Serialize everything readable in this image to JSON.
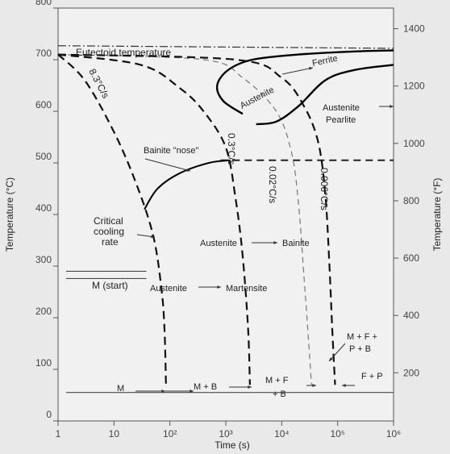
{
  "chart_data": {
    "type": "line",
    "xlabel": "Time (s)",
    "ylabel": "Temperature (°C)",
    "ylabel_right": "Temperature (°F)",
    "x_scale": "log",
    "xlim": [
      1,
      1000000
    ],
    "ylim": [
      0,
      800
    ],
    "y2lim": [
      32,
      1472
    ],
    "x_ticks": [
      {
        "value": 1,
        "label": "1"
      },
      {
        "value": 10,
        "label": "10"
      },
      {
        "value": 100,
        "label": "10²"
      },
      {
        "value": 1000,
        "label": "10³"
      },
      {
        "value": 10000,
        "label": "10⁴"
      },
      {
        "value": 100000,
        "label": "10⁵"
      },
      {
        "value": 1000000,
        "label": "10⁶"
      }
    ],
    "y_ticks": [
      0,
      100,
      200,
      300,
      400,
      500,
      600,
      700,
      800
    ],
    "y2_ticks": [
      200,
      400,
      600,
      800,
      1000,
      1200,
      1400
    ],
    "eutectoid": {
      "label": "Eutectoid temperature",
      "value": 727
    },
    "ms": {
      "label": "M (start)",
      "value": 290
    },
    "bainite_finish_temp": 505,
    "cooling_curves": [
      {
        "label": "8.3°C/s",
        "points": [
          [
            1,
            710
          ],
          [
            3,
            660
          ],
          [
            10,
            560
          ],
          [
            25,
            460
          ],
          [
            50,
            360
          ],
          [
            70,
            260
          ],
          [
            80,
            180
          ],
          [
            85,
            70
          ]
        ]
      },
      {
        "label": "0.3°C/s",
        "points": [
          [
            1,
            710
          ],
          [
            30,
            690
          ],
          [
            150,
            645
          ],
          [
            400,
            600
          ],
          [
            1000,
            530
          ],
          [
            1500,
            430
          ],
          [
            2000,
            320
          ],
          [
            2500,
            180
          ],
          [
            2700,
            70
          ]
        ]
      },
      {
        "label": "0.02°C/s",
        "points": [
          [
            1,
            710
          ],
          [
            400,
            700
          ],
          [
            2000,
            665
          ],
          [
            8000,
            600
          ],
          [
            15000,
            520
          ],
          [
            20000,
            420
          ],
          [
            25000,
            280
          ],
          [
            30000,
            160
          ],
          [
            34000,
            70
          ]
        ]
      },
      {
        "label": "0.006°C/s",
        "points": [
          [
            1,
            710
          ],
          [
            1500,
            700
          ],
          [
            10000,
            665
          ],
          [
            25000,
            610
          ],
          [
            45000,
            540
          ],
          [
            60000,
            440
          ],
          [
            70000,
            320
          ],
          [
            80000,
            180
          ],
          [
            90000,
            70
          ]
        ]
      }
    ],
    "transformation_curves": {
      "austenite_start": [
        [
          2000,
          595
        ],
        [
          900,
          620
        ],
        [
          700,
          650
        ],
        [
          1100,
          680
        ],
        [
          3000,
          700
        ],
        [
          20000,
          710
        ],
        [
          200000,
          716
        ],
        [
          1000000,
          718
        ]
      ],
      "austenite_finish": [
        [
          3500,
          575
        ],
        [
          8000,
          580
        ],
        [
          20000,
          610
        ],
        [
          60000,
          660
        ],
        [
          200000,
          680
        ],
        [
          1000000,
          690
        ]
      ],
      "bainite_nose": [
        [
          35,
          410
        ],
        [
          60,
          450
        ],
        [
          150,
          480
        ],
        [
          500,
          500
        ],
        [
          1200,
          505
        ]
      ]
    },
    "annotations": [
      {
        "text": "Eutectoid temperature"
      },
      {
        "text": "Austenite"
      },
      {
        "text": "Ferrite"
      },
      {
        "text": "Austenite"
      },
      {
        "text": "Pearlite"
      },
      {
        "text": "Bainite \"nose\""
      },
      {
        "text": "Critical"
      },
      {
        "text": "cooling"
      },
      {
        "text": "rate"
      },
      {
        "text": "Austenite"
      },
      {
        "text": "Bainite"
      },
      {
        "text": "M (start)"
      },
      {
        "text": "Austenite"
      },
      {
        "text": "Martensite"
      },
      {
        "text": "M + F +"
      },
      {
        "text": "P + B"
      },
      {
        "text": "M"
      },
      {
        "text": "M + B"
      },
      {
        "text": "M + F"
      },
      {
        "text": "+ B"
      },
      {
        "text": "F + P"
      }
    ]
  }
}
